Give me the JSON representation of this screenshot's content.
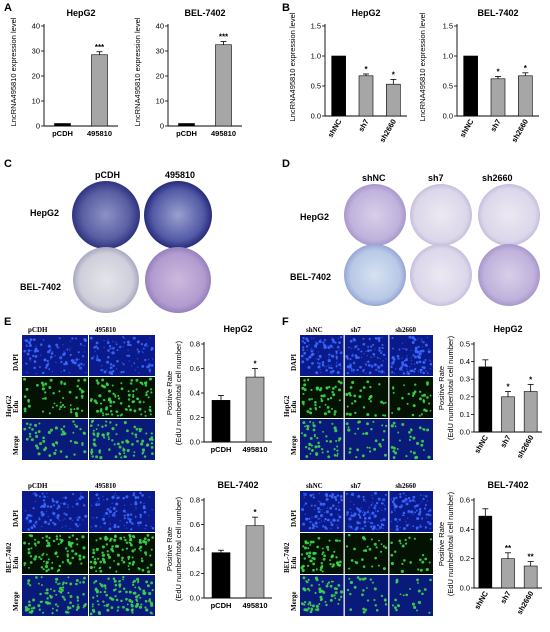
{
  "panels": {
    "A": "A",
    "B": "B",
    "C": "C",
    "D": "D",
    "E": "E",
    "F": "F"
  },
  "panel_C": {
    "col1": "pCDH",
    "col2": "495810",
    "row1": "HepG2",
    "row2": "BEL-7402"
  },
  "panel_D": {
    "col1": "shNC",
    "col2": "sh7",
    "col3": "sh2660",
    "row1": "HepG2",
    "row2": "BEL-7402"
  },
  "panel_E_images": {
    "top_col1": "pCDH",
    "top_col2": "495810",
    "bot_col1": "pCDH",
    "bot_col2": "495810",
    "row_dapi": "DAPI",
    "row_edu": "Edu",
    "row_merge": "Merge",
    "cell_top": "HepG2",
    "cell_bot": "BEL-7402"
  },
  "panel_F_images": {
    "top_col1": "shNC",
    "top_col2": "sh7",
    "top_col3": "sh2660",
    "bot_col1": "shNC",
    "bot_col2": "sh7",
    "bot_col3": "sh2660",
    "row_dapi": "DAPI",
    "row_edu": "Edu",
    "row_merge": "Merge",
    "cell_top": "HepG2",
    "cell_bot": "BEL-7402"
  },
  "colors": {
    "bar_black": "#000000",
    "bar_gray": "#a6a6a6",
    "plate_blue": "#3b3f8f",
    "plate_violet": "#b9a6d6",
    "dapi": "#1a3fd0",
    "edu": "#29c23a"
  },
  "chart_data": [
    {
      "id": "A-HepG2",
      "type": "bar",
      "title": "HepG2",
      "ylabel": "LncRNA495810 expression level",
      "categories": [
        "pCDH",
        "495810"
      ],
      "values": [
        1,
        28.5
      ],
      "errors": [
        0,
        1.2
      ],
      "ylim": [
        0,
        40
      ],
      "yticks": [
        0,
        10,
        20,
        30,
        40
      ],
      "annotations": [
        "",
        "***"
      ],
      "bar_colors": [
        "#000000",
        "#a6a6a6"
      ]
    },
    {
      "id": "A-BEL",
      "type": "bar",
      "title": "BEL-7402",
      "ylabel": "LncRNA495810 expression level",
      "categories": [
        "pCDH",
        "495810"
      ],
      "values": [
        1,
        32.5
      ],
      "errors": [
        0,
        1.3
      ],
      "ylim": [
        0,
        40
      ],
      "yticks": [
        0,
        10,
        20,
        30,
        40
      ],
      "annotations": [
        "",
        "***"
      ],
      "bar_colors": [
        "#000000",
        "#a6a6a6"
      ]
    },
    {
      "id": "B-HepG2",
      "type": "bar",
      "title": "HepG2",
      "ylabel": "LncRNA495810 expression level",
      "categories": [
        "shNC",
        "sh7",
        "sh2660"
      ],
      "values": [
        1.0,
        0.67,
        0.53
      ],
      "errors": [
        0,
        0.03,
        0.08
      ],
      "ylim": [
        0,
        1.5
      ],
      "yticks": [
        0.0,
        0.5,
        1.0,
        1.5
      ],
      "annotations": [
        "",
        "*",
        "*"
      ],
      "bar_colors": [
        "#000000",
        "#a6a6a6",
        "#a6a6a6"
      ]
    },
    {
      "id": "B-BEL",
      "type": "bar",
      "title": "BEL-7402",
      "ylabel": "LncRNA495810 expression level",
      "categories": [
        "shNC",
        "sh7",
        "sh2660"
      ],
      "values": [
        1.0,
        0.62,
        0.67
      ],
      "errors": [
        0,
        0.04,
        0.05
      ],
      "ylim": [
        0,
        1.5
      ],
      "yticks": [
        0.0,
        0.5,
        1.0,
        1.5
      ],
      "annotations": [
        "",
        "*",
        "*"
      ],
      "bar_colors": [
        "#000000",
        "#a6a6a6",
        "#a6a6a6"
      ]
    },
    {
      "id": "E-HepG2",
      "type": "bar",
      "title": "HepG2",
      "ylabel": "Positive Rate (EdU number/total cell number)",
      "categories": [
        "pCDH",
        "495810"
      ],
      "values": [
        0.34,
        0.53
      ],
      "errors": [
        0.04,
        0.07
      ],
      "ylim": [
        0,
        0.8
      ],
      "yticks": [
        0.0,
        0.2,
        0.4,
        0.6,
        0.8
      ],
      "annotations": [
        "",
        "*"
      ],
      "bar_colors": [
        "#000000",
        "#a6a6a6"
      ]
    },
    {
      "id": "E-BEL",
      "type": "bar",
      "title": "BEL-7402",
      "ylabel": "Positive Rate (EdU number/total cell number)",
      "categories": [
        "pCDH",
        "495810"
      ],
      "values": [
        0.37,
        0.59
      ],
      "errors": [
        0.02,
        0.07
      ],
      "ylim": [
        0,
        0.8
      ],
      "yticks": [
        0.0,
        0.2,
        0.4,
        0.6,
        0.8
      ],
      "annotations": [
        "",
        "*"
      ],
      "bar_colors": [
        "#000000",
        "#a6a6a6"
      ]
    },
    {
      "id": "F-HepG2",
      "type": "bar",
      "title": "HepG2",
      "ylabel": "Positive Rate (EdU number/total cell number)",
      "categories": [
        "shNC",
        "sh7",
        "sh2660"
      ],
      "values": [
        0.37,
        0.2,
        0.23
      ],
      "errors": [
        0.04,
        0.03,
        0.04
      ],
      "ylim": [
        0,
        0.5
      ],
      "yticks": [
        0.0,
        0.1,
        0.2,
        0.3,
        0.4,
        0.5
      ],
      "annotations": [
        "",
        "*",
        "*"
      ],
      "bar_colors": [
        "#000000",
        "#a6a6a6",
        "#a6a6a6"
      ]
    },
    {
      "id": "F-BEL",
      "type": "bar",
      "title": "BEL-7402",
      "ylabel": "Positive Rate (EdU number/total cell number)",
      "categories": [
        "shNC",
        "sh7",
        "sh2660"
      ],
      "values": [
        0.49,
        0.2,
        0.15
      ],
      "errors": [
        0.05,
        0.04,
        0.03
      ],
      "ylim": [
        0,
        0.6
      ],
      "yticks": [
        0.0,
        0.2,
        0.4,
        0.6
      ],
      "annotations": [
        "",
        "**",
        "**"
      ],
      "bar_colors": [
        "#000000",
        "#a6a6a6",
        "#a6a6a6"
      ]
    }
  ]
}
